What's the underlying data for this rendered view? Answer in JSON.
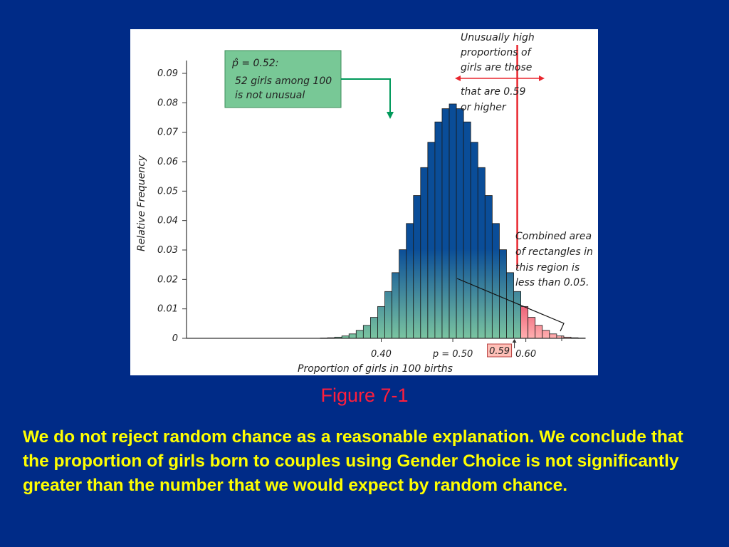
{
  "caption": "Figure 7-1",
  "conclusion": "We do not reject random chance as a reasonable explanation. We conclude that the proportion of girls born to couples using Gender Choice is not significantly greater than the number that we would expect by random chance.",
  "colors": {
    "background": "#002b87",
    "bar_top": "#0a4d98",
    "bar_bottom": "#7ac4a0",
    "tail_top": "#e0224a",
    "tail_bottom": "#ffb0b0",
    "cutoff_line": "#e8262e",
    "note_box": "#78c896",
    "note_arrow": "#00995a"
  },
  "chart_data": {
    "type": "bar",
    "ylabel": "Relative Frequency",
    "xlabel": "Proportion of girls in 100 births",
    "ylim": [
      0,
      0.09
    ],
    "y_ticks": [
      "0",
      "0.01",
      "0.02",
      "0.03",
      "0.04",
      "0.05",
      "0.06",
      "0.07",
      "0.08",
      "0.09"
    ],
    "x_tick_labels": [
      {
        "x": 0.4,
        "label": "0.40"
      },
      {
        "x": 0.5,
        "label": "p = 0.50"
      },
      {
        "x": 0.59,
        "label": "0.59"
      },
      {
        "x": 0.6,
        "label": "0.60"
      }
    ],
    "x": [
      0.32,
      0.33,
      0.34,
      0.35,
      0.36,
      0.37,
      0.38,
      0.39,
      0.4,
      0.41,
      0.42,
      0.43,
      0.44,
      0.45,
      0.46,
      0.47,
      0.48,
      0.49,
      0.5,
      0.51,
      0.52,
      0.53,
      0.54,
      0.55,
      0.56,
      0.57,
      0.58,
      0.59,
      0.6,
      0.61,
      0.62,
      0.63,
      0.64,
      0.65,
      0.66,
      0.67,
      0.68
    ],
    "values": [
      0.0001,
      0.0002,
      0.0004,
      0.0008,
      0.0015,
      0.0027,
      0.0044,
      0.0071,
      0.0108,
      0.0159,
      0.0223,
      0.0301,
      0.039,
      0.0485,
      0.058,
      0.0666,
      0.0735,
      0.078,
      0.0796,
      0.078,
      0.0735,
      0.0666,
      0.058,
      0.0485,
      0.039,
      0.0301,
      0.0223,
      0.0159,
      0.0108,
      0.0071,
      0.0044,
      0.0027,
      0.0015,
      0.0008,
      0.0004,
      0.0002,
      0.0001
    ],
    "cutoff": 0.59,
    "annotations": {
      "phat_line1": "p̂ = 0.52:",
      "phat_line2": "52 girls among 100",
      "phat_line3": "is not unusual",
      "high_lines": [
        "Unusually high",
        "proportions of",
        "girls are those"
      ],
      "high_lines2": [
        "that are 0.59",
        "or higher"
      ],
      "area_lines": [
        "Combined area",
        "of rectangles in",
        "this region is",
        "less than 0.05."
      ]
    }
  }
}
